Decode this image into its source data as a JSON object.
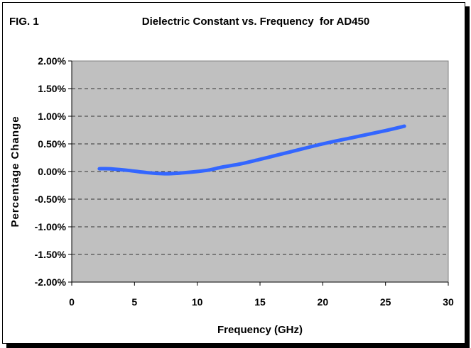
{
  "figure_label": "FIG. 1",
  "chart_data": {
    "type": "line",
    "title": "Dielectric Constant vs. Frequency  for AD450",
    "xlabel": "Frequency (GHz)",
    "ylabel": "Percentage Change",
    "xlim": [
      0,
      30
    ],
    "ylim": [
      -2.0,
      2.0
    ],
    "xticks": [
      0,
      5,
      10,
      15,
      20,
      25,
      30
    ],
    "xtick_labels": [
      "0",
      "5",
      "10",
      "15",
      "20",
      "25",
      "30"
    ],
    "yticks": [
      2.0,
      1.5,
      1.0,
      0.5,
      0.0,
      -0.5,
      -1.0,
      -1.5,
      -2.0
    ],
    "ytick_labels": [
      "2.00%",
      "1.50%",
      "1.00%",
      "0.50%",
      "0.00%",
      "-0.50%",
      "-1.00%",
      "-1.50%",
      "-2.00%"
    ],
    "grid": "horizontal dashed",
    "plot_background": "#c0c0c0",
    "series": [
      {
        "name": "AD450",
        "color": "#3366ff",
        "x": [
          2.2,
          3.0,
          4.5,
          6.0,
          7.4,
          8.5,
          10.0,
          11.0,
          12.0,
          13.5,
          15.0,
          17.5,
          20.0,
          22.5,
          25.0,
          26.5
        ],
        "y": [
          0.05,
          0.05,
          0.02,
          -0.02,
          -0.04,
          -0.03,
          0.0,
          0.03,
          0.08,
          0.14,
          0.22,
          0.36,
          0.5,
          0.62,
          0.74,
          0.82
        ]
      }
    ]
  }
}
